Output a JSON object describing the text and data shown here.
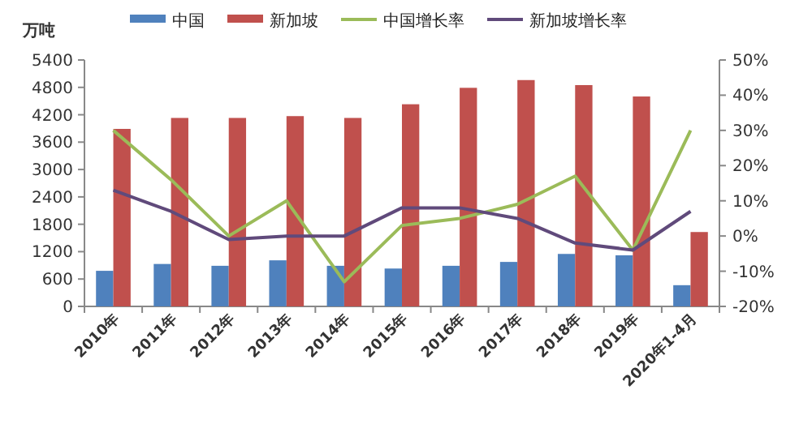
{
  "chart_data": {
    "type": "bar",
    "ylabel": "万吨",
    "legend": "top",
    "categories": [
      "2010年",
      "2011年",
      "2012年",
      "2013年",
      "2014年",
      "2015年",
      "2016年",
      "2017年",
      "2018年",
      "2019年",
      "2020年1-4月"
    ],
    "series": [
      {
        "name": "中国",
        "color": "#4f81bd",
        "values": [
          780,
          930,
          890,
          1010,
          890,
          830,
          890,
          975,
          1150,
          1120,
          465
        ]
      },
      {
        "name": "新加坡",
        "color": "#c0504d",
        "values": [
          3890,
          4130,
          4130,
          4170,
          4130,
          4430,
          4790,
          4960,
          4850,
          4600,
          1630
        ]
      },
      {
        "name": "中国增长率",
        "type": "line",
        "axis": "y2",
        "color": "#9bbb59",
        "values": [
          30,
          16,
          0,
          10,
          -13,
          3,
          5,
          9,
          17,
          -4,
          30
        ]
      },
      {
        "name": "新加坡增长率",
        "type": "line",
        "axis": "y2",
        "color": "#604a7b",
        "values": [
          13,
          7,
          -1,
          0,
          0,
          8,
          8,
          5,
          -2,
          -4,
          7
        ]
      }
    ],
    "ylim": [
      0,
      5400
    ],
    "yticks": [
      0,
      600,
      1200,
      1800,
      2400,
      3000,
      3600,
      4200,
      4800,
      5400
    ],
    "y2lim": [
      -20,
      50
    ],
    "y2ticks": [
      {
        "value": -20,
        "label": "-20%"
      },
      {
        "value": -10,
        "label": "-10%"
      },
      {
        "value": 0,
        "label": "0%"
      },
      {
        "value": 10,
        "label": "10%"
      },
      {
        "value": 20,
        "label": "20%"
      },
      {
        "value": 30,
        "label": "30%"
      },
      {
        "value": 40,
        "label": "40%"
      },
      {
        "value": 50,
        "label": "50%"
      }
    ]
  }
}
